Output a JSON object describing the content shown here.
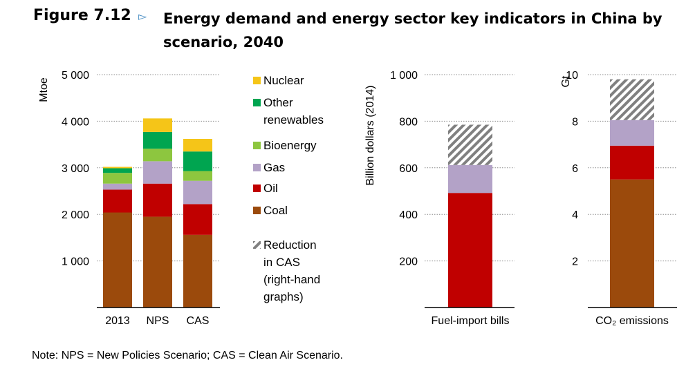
{
  "figure": {
    "label": "Figure 7.12",
    "arrow_icon": "triangle-right-outline",
    "title": "Energy demand and energy sector key indicators in China by scenario, 2040"
  },
  "note": "Note: NPS = New Policies Scenario; CAS = Clean Air Scenario.",
  "colors": {
    "Nuclear": "#f5c518",
    "Other renewables": "#00a550",
    "Bioenergy": "#8dc63f",
    "Gas": "#b3a2c7",
    "Oil": "#c00000",
    "Coal": "#9b4a0c",
    "Reduction in CAS": "#808080"
  },
  "legend": [
    {
      "key": "Nuclear",
      "lines": [
        "Nuclear"
      ]
    },
    {
      "key": "Other renewables",
      "lines": [
        "Other",
        "renewables"
      ]
    },
    {
      "key": "Bioenergy",
      "lines": [
        "Bioenergy"
      ]
    },
    {
      "key": "Gas",
      "lines": [
        "Gas"
      ]
    },
    {
      "key": "Oil",
      "lines": [
        "Oil"
      ]
    },
    {
      "key": "Coal",
      "lines": [
        "Coal"
      ]
    },
    {
      "key": "Reduction in CAS",
      "lines": [
        "Reduction",
        "in CAS",
        "(right-hand",
        "graphs)"
      ],
      "hatched": true
    }
  ],
  "chart_data": [
    {
      "type": "bar",
      "stacked": true,
      "ylabel": "Mtoe",
      "ylim": [
        0,
        5000
      ],
      "yticks": [
        1000,
        2000,
        3000,
        4000,
        5000
      ],
      "ytick_labels": [
        "1 000",
        "2 000",
        "3 000",
        "4 000",
        "5 000"
      ],
      "grid": "dotted horizontal",
      "categories": [
        "2013",
        "NPS",
        "CAS"
      ],
      "series": [
        {
          "name": "Coal",
          "values": [
            2040,
            1950,
            1560
          ]
        },
        {
          "name": "Oil",
          "values": [
            490,
            710,
            660
          ]
        },
        {
          "name": "Gas",
          "values": [
            130,
            480,
            500
          ]
        },
        {
          "name": "Bioenergy",
          "values": [
            230,
            270,
            210
          ]
        },
        {
          "name": "Other renewables",
          "values": [
            100,
            360,
            420
          ]
        },
        {
          "name": "Nuclear",
          "values": [
            30,
            290,
            270
          ]
        }
      ]
    },
    {
      "type": "bar",
      "stacked": true,
      "ylabel": "Billion dollars (2014)",
      "ylim": [
        0,
        1000
      ],
      "yticks": [
        200,
        400,
        600,
        800,
        1000
      ],
      "ytick_labels": [
        "200",
        "400",
        "600",
        "800",
        "1 000"
      ],
      "grid": "dotted horizontal",
      "categories": [
        "Fuel-import bills"
      ],
      "series": [
        {
          "name": "Oil",
          "values": [
            492
          ]
        },
        {
          "name": "Gas",
          "values": [
            120
          ]
        },
        {
          "name": "Reduction in CAS",
          "values": [
            173
          ]
        }
      ]
    },
    {
      "type": "bar",
      "stacked": true,
      "ylabel": "Gt",
      "ylim": [
        0,
        10
      ],
      "yticks": [
        2,
        4,
        6,
        8,
        10
      ],
      "ytick_labels": [
        "2",
        "4",
        "6",
        "8",
        "10"
      ],
      "grid": "dotted horizontal",
      "categories": [
        "CO₂ emissions"
      ],
      "series": [
        {
          "name": "Coal",
          "values": [
            5.5
          ]
        },
        {
          "name": "Oil",
          "values": [
            1.45
          ]
        },
        {
          "name": "Gas",
          "values": [
            1.1
          ]
        },
        {
          "name": "Reduction in CAS",
          "values": [
            1.75
          ]
        }
      ]
    }
  ]
}
